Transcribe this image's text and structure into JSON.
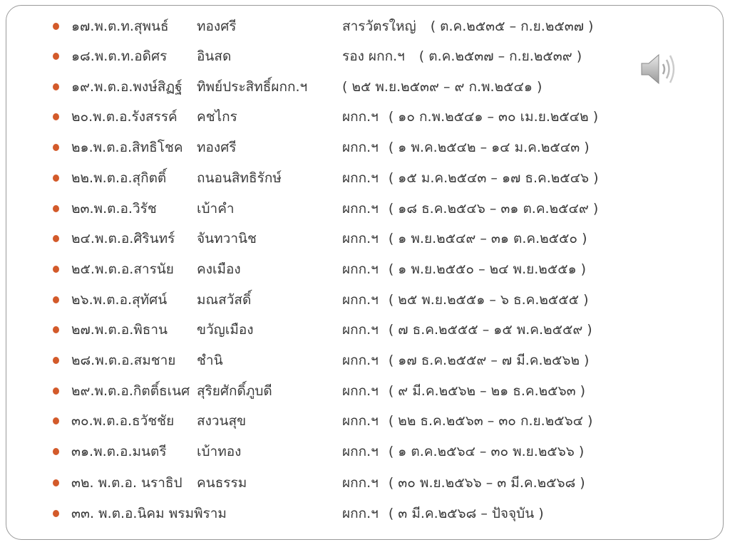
{
  "colors": {
    "bullet": "#d35a2a",
    "border": "#9a9a9a",
    "text": "#3a3a3a"
  },
  "speaker_icon": "speaker-audio-icon",
  "rows": [
    {
      "name": "๑๗.พ.ต.ท.สุพนธ์",
      "surname": "ทองศรี",
      "position": "สารวัตรใหญ่",
      "term": "( ต.ค.๒๕๓๕ – ก.ย.๒๕๓๗ )"
    },
    {
      "name": "๑๘.พ.ต.ท.อดิศร",
      "surname": "อินสด",
      "position": "รอง ผกก.ฯ",
      "term": "( ต.ค.๒๕๓๗ – ก.ย.๒๕๓๙ )"
    },
    {
      "name": "๑๙.พ.ต.อ.พงษ์สิฏฐ์",
      "surname": "ทิพย์ประสิทธิ์ผกก.ฯ",
      "position": "",
      "term": "( ๒๕ พ.ย.๒๕๓๙ – ๙ ก.พ.๒๕๔๑ )"
    },
    {
      "name": "๒๐.พ.ต.อ.รังสรรค์",
      "surname": "คชไกร",
      "position": "ผกก.ฯ",
      "term": "( ๑๐ ก.พ.๒๕๔๑ – ๓๐ เม.ย.๒๕๔๒ )"
    },
    {
      "name": "๒๑.พ.ต.อ.สิทธิโชค",
      "surname": "ทองศรี",
      "position": "ผกก.ฯ",
      "term": "( ๑ พ.ค.๒๕๔๒ – ๑๔ ม.ค.๒๕๔๓ )"
    },
    {
      "name": "๒๒.พ.ต.อ.สุกิตติ์",
      "surname": "ถนอนสิทธิรักษ์",
      "position": "ผกก.ฯ",
      "term": "( ๑๕ ม.ค.๒๕๔๓ – ๑๗ ธ.ค.๒๕๔๖ )"
    },
    {
      "name": "๒๓.พ.ต.อ.วิรัช",
      "surname": "เบ้าคำ",
      "position": "ผกก.ฯ",
      "term": "( ๑๘ ธ.ค.๒๕๔๖ – ๓๑ ต.ค.๒๕๔๙ )"
    },
    {
      "name": "๒๔.พ.ต.อ.ศิรินทร์",
      "surname": "จันทวานิช",
      "position": "ผกก.ฯ",
      "term": "( ๑ พ.ย.๒๕๔๙ – ๓๑ ต.ค.๒๕๕๐ )"
    },
    {
      "name": "๒๕.พ.ต.อ.สารนัย",
      "surname": "คงเมือง",
      "position": "ผกก.ฯ",
      "term": "( ๑ พ.ย.๒๕๕๐ – ๒๔ พ.ย.๒๕๕๑ )"
    },
    {
      "name": "๒๖.พ.ต.อ.สุทัศน์",
      "surname": "มณสวัสดิ์",
      "position": "ผกก.ฯ",
      "term": "( ๒๕ พ.ย.๒๕๕๑ – ๖ ธ.ค.๒๕๕๕ )"
    },
    {
      "name": "๒๗.พ.ต.อ.พิธาน",
      "surname": "ขวัญเมือง",
      "position": "ผกก.ฯ",
      "term": "( ๗ ธ.ค.๒๕๕๕ – ๑๕ พ.ค.๒๕๕๙ )"
    },
    {
      "name": "๒๘.พ.ต.อ.สมชาย",
      "surname": "ชำนิ",
      "position": "ผกก.ฯ",
      "term": "( ๑๗ ธ.ค.๒๕๕๙ – ๗ มี.ค.๒๕๖๒ )"
    },
    {
      "name": "๒๙.พ.ต.อ.กิตติ์ธเนศ",
      "surname": "สุริยศักดิ์ภูบดี",
      "position": "ผกก.ฯ",
      "term": "( ๙ มี.ค.๒๕๖๒ – ๒๑ ธ.ค.๒๕๖๓ )"
    },
    {
      "name": "๓๐.พ.ต.อ.ธวัชชัย",
      "surname": "สงวนสุข",
      "position": "ผกก.ฯ",
      "term": "( ๒๒ ธ.ค.๒๕๖๓ – ๓๐ ก.ย.๒๕๖๔ )"
    },
    {
      "name": "๓๑.พ.ต.อ.มนตรี",
      "surname": "เบ้าทอง",
      "position": "ผกก.ฯ",
      "term": "( ๑ ต.ค.๒๕๖๔ – ๓๐ พ.ย.๒๕๖๖ )"
    },
    {
      "name": "๓๒.  พ.ต.อ. นราธิป",
      "surname": "คนธรรม",
      "position": "ผกก.ฯ",
      "term": "( ๓๐ พ.ย.๒๕๖๖ – ๓ มี.ค.๒๕๖๘ )"
    },
    {
      "name": "๓๓. พ.ต.อ.นิคม พรมพิราม",
      "surname": "",
      "position": "ผกก.ฯ",
      "term": "( ๓ มี.ค.๒๕๖๘ – ปัจจุบัน )"
    }
  ]
}
